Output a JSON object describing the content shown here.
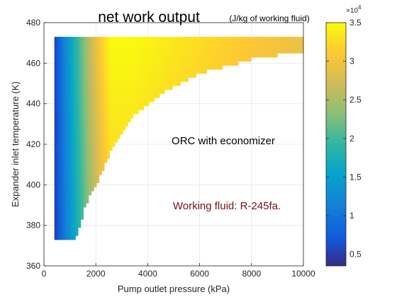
{
  "chart_data": {
    "type": "heatmap",
    "title": "net work output",
    "subtitle": "(J/kg of working fluid)",
    "xlabel": "Pump outlet pressure (kPa)",
    "ylabel": "Expander inlet temperature (K)",
    "xlim": [
      0,
      10000
    ],
    "ylim": [
      360,
      480
    ],
    "xticks": [
      0,
      2000,
      4000,
      6000,
      8000,
      10000
    ],
    "yticks": [
      360,
      380,
      400,
      420,
      440,
      460,
      480
    ],
    "grid": true,
    "colormap": "parula",
    "colorbar": {
      "range": [
        3500,
        35000
      ],
      "ticks": [
        0.5,
        1,
        1.5,
        2,
        2.5,
        3,
        3.5
      ],
      "exponent_label": "×10",
      "exponent_power": "4"
    },
    "data_region": {
      "p_min": 400,
      "p_max": 10000,
      "T_min": 373,
      "T_max": 473,
      "lower_boundary": [
        [
          1200,
          373
        ],
        [
          1400,
          380
        ],
        [
          1600,
          390
        ],
        [
          2000,
          400
        ],
        [
          2700,
          420
        ],
        [
          3500,
          435
        ],
        [
          4500,
          445
        ],
        [
          6000,
          455
        ],
        [
          8000,
          462
        ],
        [
          9500,
          465
        ],
        [
          10000,
          466
        ]
      ],
      "peak": [
        3400,
        473,
        35000
      ]
    },
    "annotations": [
      "ORC with economizer",
      "Working fluid: R-245fa."
    ]
  }
}
